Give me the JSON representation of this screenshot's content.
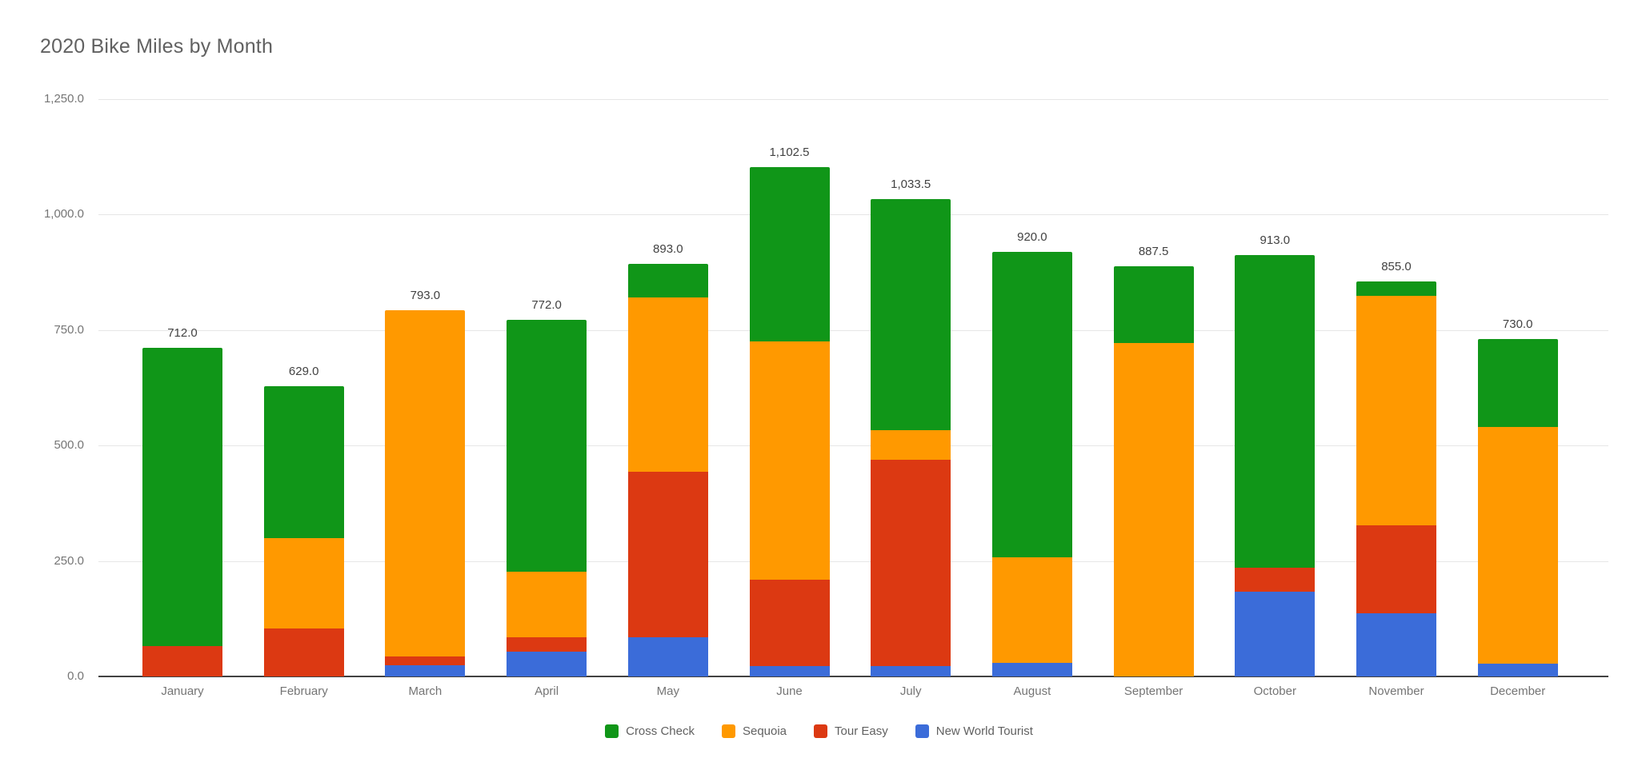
{
  "title": "2020 Bike Miles by Month",
  "chart_data": {
    "type": "bar",
    "stacked": true,
    "title": "2020 Bike Miles by Month",
    "categories": [
      "January",
      "February",
      "March",
      "April",
      "May",
      "June",
      "July",
      "August",
      "September",
      "October",
      "November",
      "December"
    ],
    "series": [
      {
        "name": "New World Tourist",
        "color": "#3B6CD9",
        "values": [
          0,
          0,
          24,
          53,
          85,
          22,
          22,
          29,
          0,
          183,
          136,
          28
        ]
      },
      {
        "name": "Tour Easy",
        "color": "#DC3912",
        "values": [
          65,
          104,
          20,
          32,
          358,
          187,
          447,
          0,
          0,
          53,
          191,
          0
        ]
      },
      {
        "name": "Sequoia",
        "color": "#FF9900",
        "values": [
          0,
          196,
          749,
          141,
          378,
          516,
          65,
          229,
          722,
          0,
          498,
          513
        ]
      },
      {
        "name": "Cross Check",
        "color": "#109618",
        "values": [
          647,
          329,
          0,
          546,
          72,
          377.5,
          499.5,
          662,
          165.5,
          677,
          30,
          189
        ]
      }
    ],
    "totals": [
      712,
      629,
      793,
      772,
      893,
      1102.5,
      1033.5,
      920,
      887.5,
      913,
      855,
      730
    ],
    "total_labels": [
      "712.0",
      "629.0",
      "793.0",
      "772.0",
      "893.0",
      "1,102.5",
      "1,033.5",
      "920.0",
      "887.5",
      "913.0",
      "855.0",
      "730.0"
    ],
    "y_ticks": [
      "1,250.0",
      "1,000.0",
      "750.0",
      "500.0",
      "250.0",
      "0.0"
    ],
    "ylim": [
      0,
      1250
    ],
    "grid": true,
    "legend_position": "bottom",
    "legend": [
      {
        "label": "Cross Check",
        "color": "#109618"
      },
      {
        "label": "Sequoia",
        "color": "#FF9900"
      },
      {
        "label": "Tour Easy",
        "color": "#DC3912"
      },
      {
        "label": "New World Tourist",
        "color": "#3B6CD9"
      }
    ]
  }
}
